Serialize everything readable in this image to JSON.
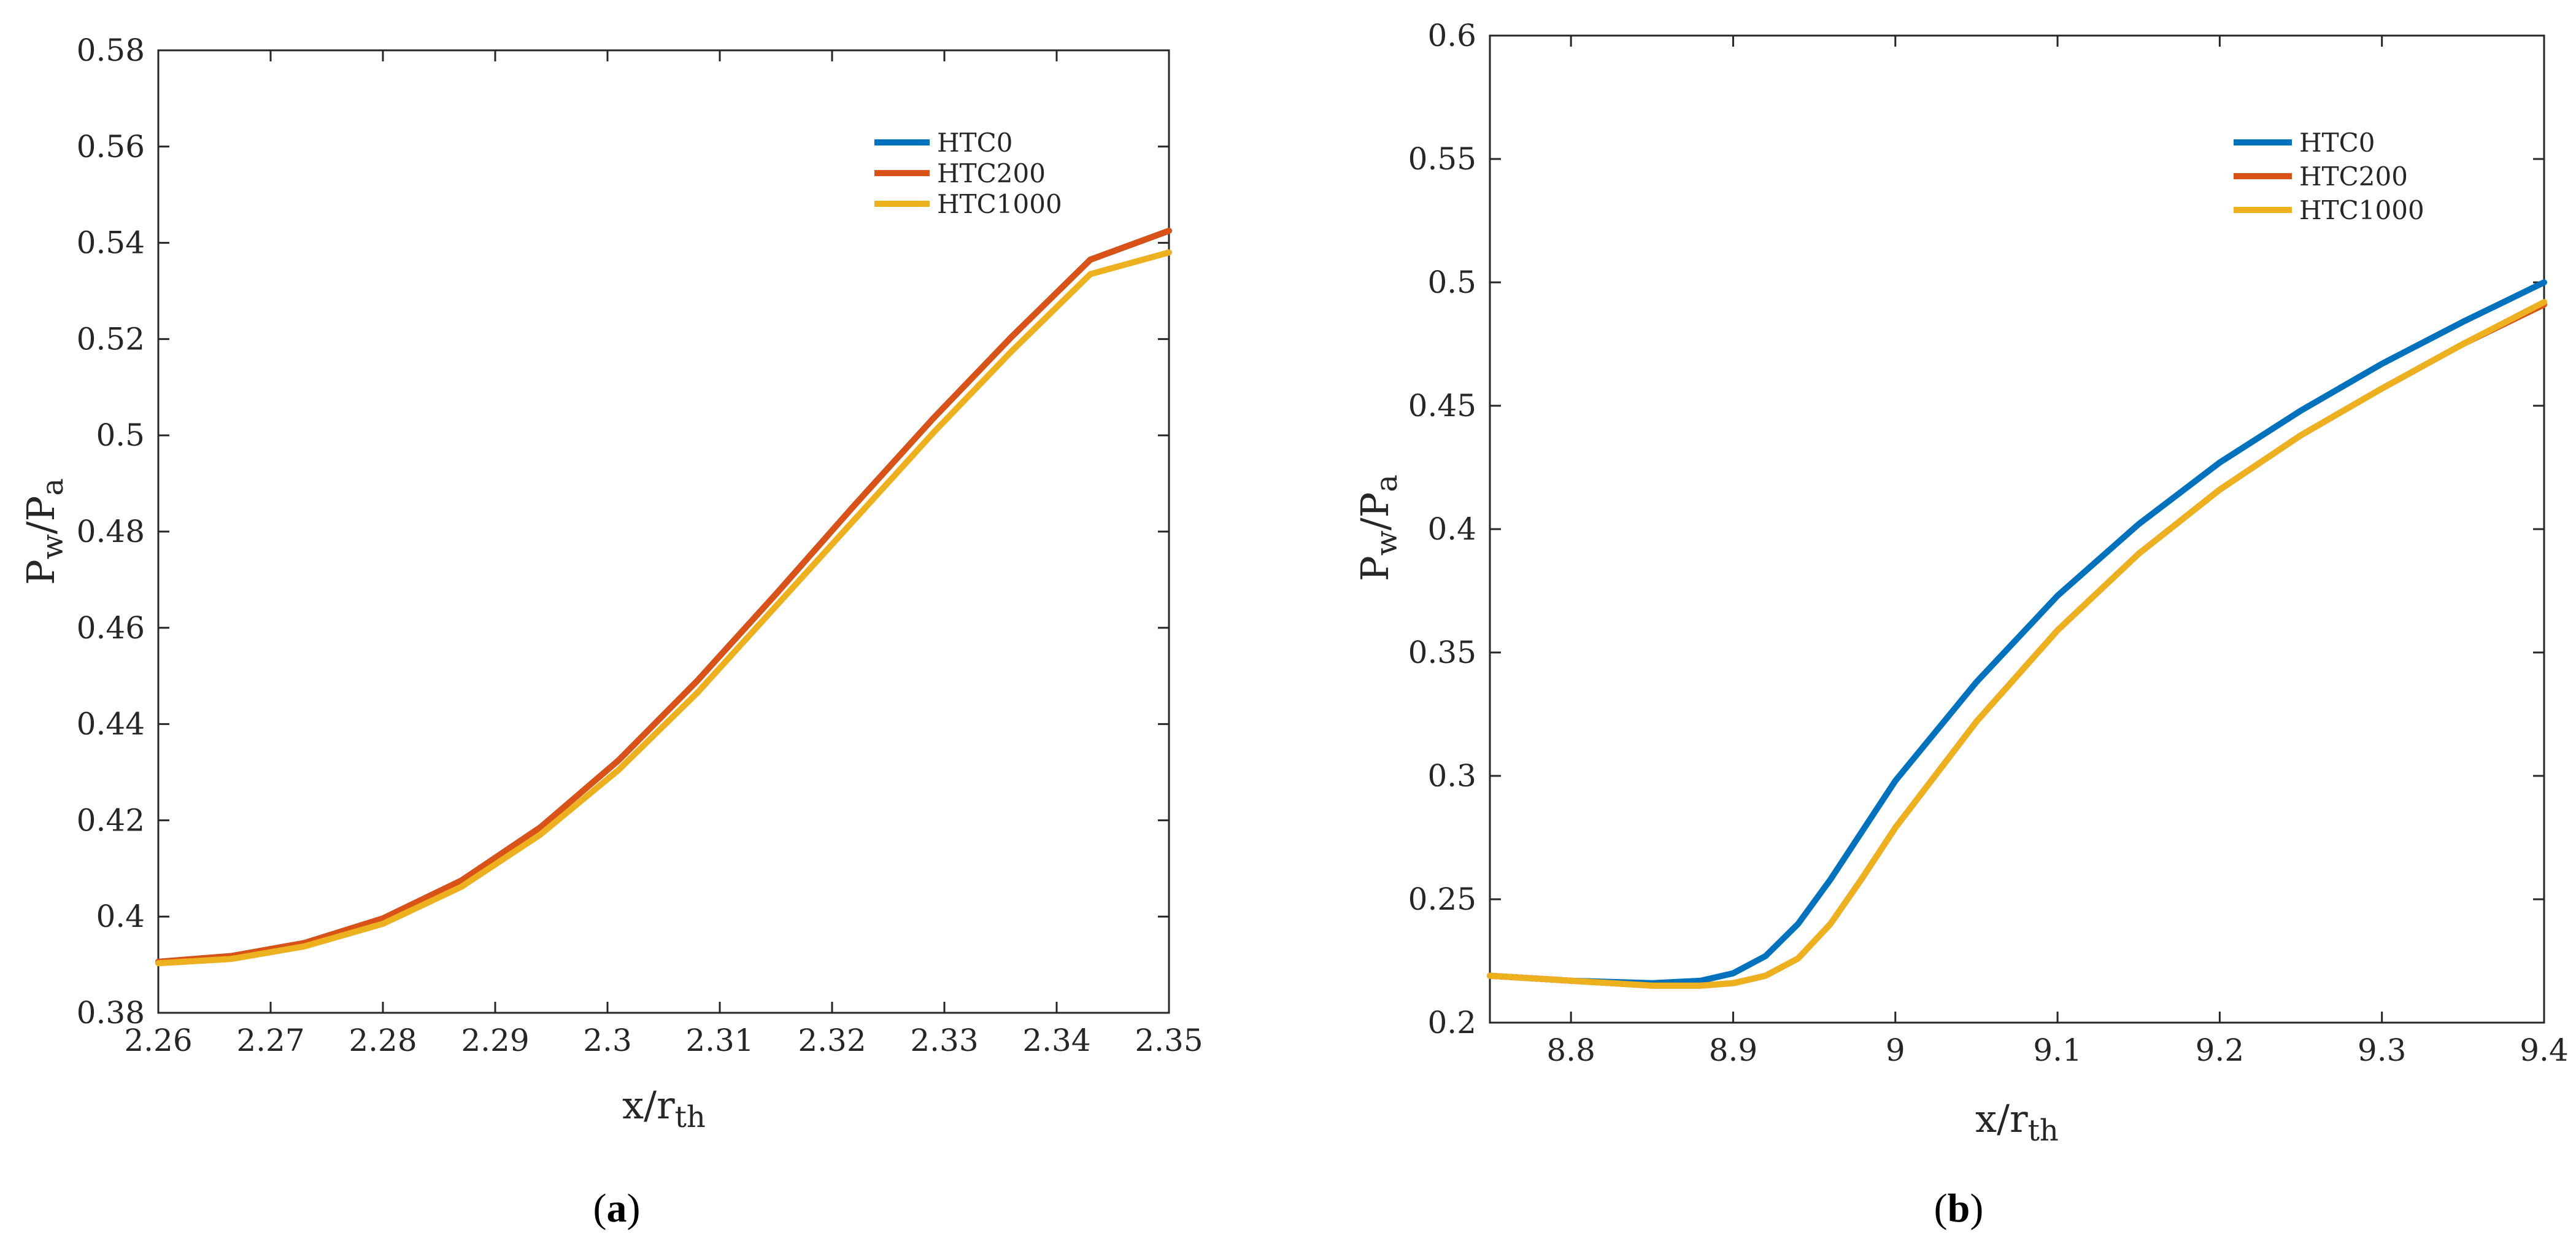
{
  "chart_data": [
    {
      "type": "line",
      "panel_label": {
        "open": "(",
        "letter": "a",
        "close": ")"
      },
      "xlabel": {
        "main": "x/r",
        "sub": "th"
      },
      "ylabel": {
        "main1": "P",
        "sub1": "w",
        "mid": "/P",
        "sub2": "a"
      },
      "xlim": [
        2.26,
        2.35
      ],
      "ylim": [
        0.38,
        0.58
      ],
      "xticks": [
        2.26,
        2.27,
        2.28,
        2.29,
        2.3,
        2.31,
        2.32,
        2.33,
        2.34,
        2.35
      ],
      "xtick_labels": [
        "2.26",
        "2.27",
        "2.28",
        "2.29",
        "2.3",
        "2.31",
        "2.32",
        "2.33",
        "2.34",
        "2.35"
      ],
      "yticks": [
        0.38,
        0.4,
        0.42,
        0.44,
        0.46,
        0.48,
        0.5,
        0.52,
        0.54,
        0.56,
        0.58
      ],
      "ytick_labels": [
        "0.38",
        "0.4",
        "0.42",
        "0.44",
        "0.46",
        "0.48",
        "0.5",
        "0.52",
        "0.54",
        "0.56",
        "0.58"
      ],
      "legend_position": "top-right",
      "series": [
        {
          "name": "HTC0",
          "color": "#0072BD",
          "x": [
            2.26,
            2.2665,
            2.273,
            2.28,
            2.287,
            2.294,
            2.301,
            2.308,
            2.315,
            2.322,
            2.329,
            2.336,
            2.343,
            2.35
          ],
          "y": [
            0.3906,
            0.3918,
            0.3945,
            0.3996,
            0.4075,
            0.4185,
            0.4325,
            0.449,
            0.467,
            0.4855,
            0.5035,
            0.5205,
            0.5365,
            0.5425
          ]
        },
        {
          "name": "HTC200",
          "color": "#D95319",
          "x": [
            2.26,
            2.2665,
            2.273,
            2.28,
            2.287,
            2.294,
            2.301,
            2.308,
            2.315,
            2.322,
            2.329,
            2.336,
            2.343,
            2.35
          ],
          "y": [
            0.3906,
            0.3918,
            0.3945,
            0.3996,
            0.4075,
            0.4185,
            0.4325,
            0.449,
            0.467,
            0.4855,
            0.5035,
            0.5205,
            0.5365,
            0.5425
          ]
        },
        {
          "name": "HTC1000",
          "color": "#EDB120",
          "x": [
            2.26,
            2.2665,
            2.273,
            2.28,
            2.287,
            2.294,
            2.301,
            2.308,
            2.315,
            2.322,
            2.329,
            2.336,
            2.343,
            2.35
          ],
          "y": [
            0.3903,
            0.3912,
            0.3938,
            0.3985,
            0.4062,
            0.417,
            0.4305,
            0.4465,
            0.4645,
            0.4825,
            0.5005,
            0.5175,
            0.5335,
            0.538
          ]
        }
      ]
    },
    {
      "type": "line",
      "panel_label": {
        "open": "(",
        "letter": "b",
        "close": ")"
      },
      "xlabel": {
        "main": "x/r",
        "sub": "th"
      },
      "ylabel": {
        "main1": "P",
        "sub1": "w",
        "mid": "/P",
        "sub2": "a"
      },
      "xlim": [
        8.75,
        9.4
      ],
      "ylim": [
        0.2,
        0.6
      ],
      "xticks": [
        8.8,
        8.9,
        9.0,
        9.1,
        9.2,
        9.3,
        9.4
      ],
      "xtick_labels": [
        "8.8",
        "8.9",
        "9",
        "9.1",
        "9.2",
        "9.3",
        "9.4"
      ],
      "yticks": [
        0.2,
        0.25,
        0.3,
        0.35,
        0.4,
        0.45,
        0.5,
        0.55,
        0.6
      ],
      "ytick_labels": [
        "0.2",
        "0.25",
        "0.3",
        "0.35",
        "0.4",
        "0.45",
        "0.5",
        "0.55",
        "0.6"
      ],
      "legend_position": "top-right",
      "series": [
        {
          "name": "HTC0",
          "color": "#0072BD",
          "x": [
            8.75,
            8.8,
            8.85,
            8.88,
            8.9,
            8.92,
            8.94,
            8.96,
            8.98,
            9.0,
            9.05,
            9.1,
            9.15,
            9.2,
            9.25,
            9.3,
            9.35,
            9.4
          ],
          "y": [
            0.219,
            0.217,
            0.216,
            0.217,
            0.22,
            0.227,
            0.24,
            0.258,
            0.278,
            0.298,
            0.338,
            0.373,
            0.402,
            0.427,
            0.448,
            0.467,
            0.484,
            0.5
          ]
        },
        {
          "name": "HTC200",
          "color": "#D95319",
          "x": [
            8.75,
            8.8,
            8.85,
            8.88,
            8.9,
            8.92,
            8.94,
            8.96,
            8.98,
            9.0,
            9.05,
            9.1,
            9.15,
            9.2,
            9.25,
            9.3,
            9.35,
            9.4
          ],
          "y": [
            0.219,
            0.217,
            0.215,
            0.215,
            0.216,
            0.219,
            0.226,
            0.24,
            0.259,
            0.279,
            0.322,
            0.359,
            0.39,
            0.416,
            0.438,
            0.457,
            0.475,
            0.491
          ]
        },
        {
          "name": "HTC1000",
          "color": "#EDB120",
          "x": [
            8.75,
            8.8,
            8.85,
            8.88,
            8.9,
            8.92,
            8.94,
            8.96,
            8.98,
            9.0,
            9.05,
            9.1,
            9.15,
            9.2,
            9.25,
            9.3,
            9.35,
            9.4
          ],
          "y": [
            0.219,
            0.217,
            0.215,
            0.215,
            0.216,
            0.219,
            0.226,
            0.24,
            0.259,
            0.279,
            0.322,
            0.359,
            0.39,
            0.416,
            0.438,
            0.457,
            0.475,
            0.492
          ]
        }
      ]
    }
  ]
}
